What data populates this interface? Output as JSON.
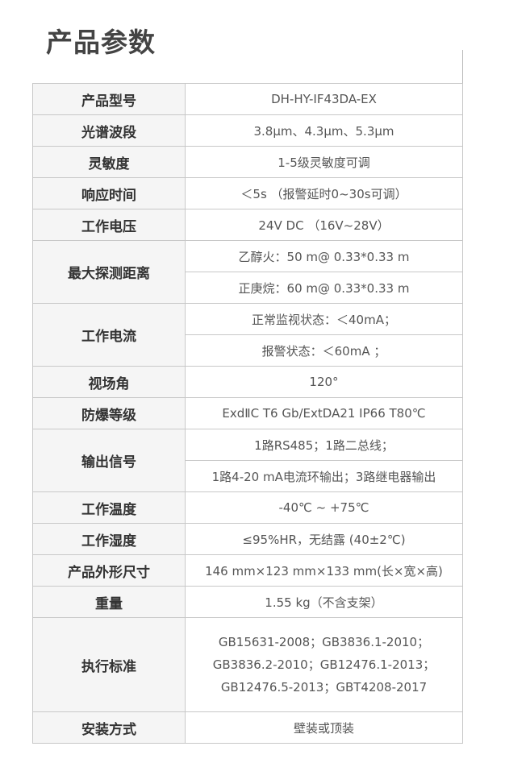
{
  "title": "产品参数",
  "rows": [
    {
      "label": "产品型号",
      "values": [
        "DH-HY-IF43DA-EX"
      ]
    },
    {
      "label": "光谱波段",
      "values": [
        "3.8μm、4.3μm、5.3μm"
      ]
    },
    {
      "label": "灵敏度",
      "values": [
        "1-5级灵敏度可调"
      ]
    },
    {
      "label": "响应时间",
      "values": [
        "＜5s （报警延时0~30s可调）"
      ]
    },
    {
      "label": "工作电压",
      "values": [
        "24V DC （16V~28V）"
      ]
    },
    {
      "label": "最大探测距离",
      "values": [
        "乙醇火：50 m@ 0.33*0.33 m",
        "正庚烷：60 m@ 0.33*0.33 m"
      ]
    },
    {
      "label": "工作电流",
      "values": [
        "正常监视状态：＜40mA；",
        "报警状态：＜60mA ；"
      ]
    },
    {
      "label": "视场角",
      "values": [
        "120°"
      ]
    },
    {
      "label": "防爆等级",
      "values": [
        "ExdⅡC T6 Gb/ExtDA21 IP66 T80℃"
      ]
    },
    {
      "label": "输出信号",
      "values": [
        "1路RS485；1路二总线；",
        "1路4-20 mA电流环输出；3路继电器输出"
      ]
    },
    {
      "label": "工作温度",
      "values": [
        "-40℃ ~ +75℃"
      ]
    },
    {
      "label": "工作湿度",
      "values": [
        "≤95%HR，无结露 (40±2℃)"
      ]
    },
    {
      "label": "产品外形尺寸",
      "values": [
        "146 mm×123 mm×133 mm(长×宽×高)"
      ]
    },
    {
      "label": "重量",
      "values": [
        "1.55 kg（不含支架）"
      ]
    },
    {
      "label": "执行标准",
      "values": [
        "GB15631-2008；GB3836.1-2010；",
        "GB3836.2-2010；GB12476.1-2013；",
        "GB12476.5-2013；GBT4208-2017"
      ],
      "single_cell": true
    },
    {
      "label": "安装方式",
      "values": [
        "壁装或顶装"
      ]
    }
  ]
}
